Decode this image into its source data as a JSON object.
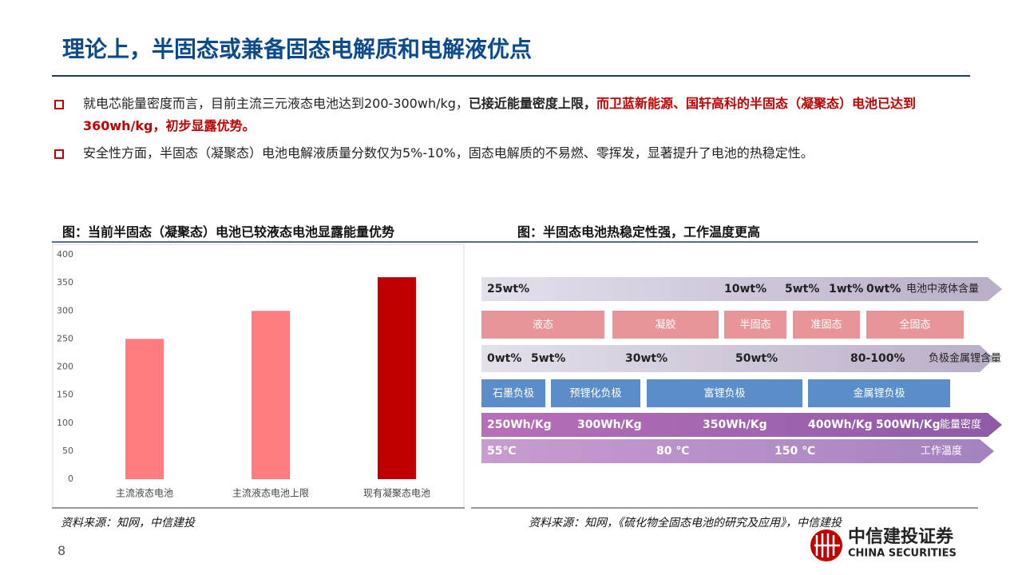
{
  "header": {
    "title": "理论上，半固态或兼备固态电解质和电解液优点"
  },
  "bullets": [
    [
      "就电芯能量密度而言，目前主流三元液态电池达到200-300wh/kg，",
      "已接近能量密度上限",
      "，",
      "而卫蓝新能源、国轩高科的半固态（凝聚态）电池已达到360wh/kg，初步显露优势。"
    ],
    [
      "安全性方面，半固态（凝聚态）电池电解液质量分数仅为5%-10%，固态电解质的不易燃、零挥发，显著提升了电池的热稳定性。"
    ]
  ],
  "left_figure": {
    "caption": "图：当前半固态（凝聚态）电池已较液态电池显露能量优势",
    "source": "资料来源：知网，中信建投",
    "chart_data": {
      "type": "bar",
      "categories": [
        "主流液态电池",
        "主流液态电池上限",
        "现有凝聚态电池"
      ],
      "values": [
        250,
        300,
        360
      ],
      "colors": [
        "#ff7c80",
        "#ff7c80",
        "#c00000"
      ],
      "ylim": [
        0,
        400
      ],
      "yticks": [
        0,
        50,
        100,
        150,
        200,
        250,
        300,
        350,
        400
      ],
      "grid": false
    }
  },
  "right_figure": {
    "caption": "图：半固态电池热稳定性强，工作温度更高",
    "source": "资料来源：知网，《硫化物全固态电池的研究及应用》，中信建投",
    "rows": [
      {
        "labels": [
          "25wt%",
          "10wt%",
          "5wt%",
          "1wt%",
          "0wt%"
        ],
        "title": "电池中液体含量"
      },
      {
        "boxes": [
          "液态",
          "凝胶",
          "半固态",
          "准固态",
          "全固态"
        ]
      },
      {
        "labels": [
          "0wt%",
          "5wt%",
          "30wt%",
          "50wt%",
          "80-100%"
        ],
        "title": "负极金属锂含量"
      },
      {
        "boxes": [
          "石墨负极",
          "预锂化负极",
          "富锂负极",
          "金属锂负极"
        ]
      },
      {
        "labels": [
          "250Wh/Kg",
          "300Wh/Kg",
          "350Wh/Kg",
          "400Wh/Kg",
          "500Wh/Kg"
        ],
        "title": "能量密度"
      },
      {
        "labels": [
          "55℃",
          "80 ℃",
          "150 ℃"
        ],
        "title": "工作温度"
      }
    ]
  },
  "footer": {
    "page": "8",
    "brand": "中信建投证券",
    "brand_en": "CHINA SECURITIES"
  }
}
